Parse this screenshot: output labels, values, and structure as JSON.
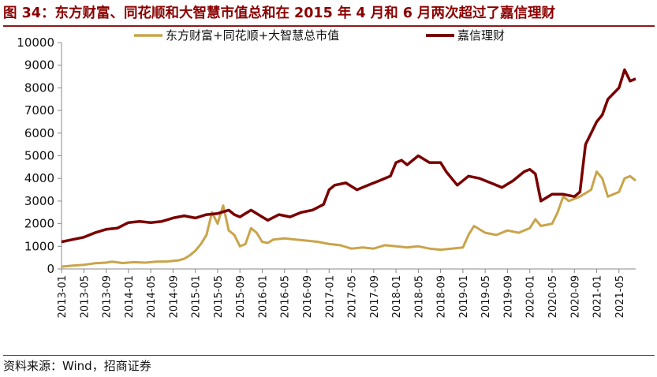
{
  "title": "图 34：东方财富、同花顺和大智慧市值总和在 2015 年 4 月和 6 月两次超过了嘉信理财",
  "source": "资料来源：Wind，招商证券",
  "chart_data": {
    "type": "line",
    "title": "图 34：东方财富、同花顺和大智慧市值总和在 2015 年 4 月和 6 月两次超过了嘉信理财",
    "xlabel": "",
    "ylabel": "",
    "ylim": [
      0,
      10000
    ],
    "yticks": [
      0,
      1000,
      2000,
      3000,
      4000,
      5000,
      6000,
      7000,
      8000,
      9000,
      10000
    ],
    "xlim": [
      "2013-01",
      "2021-08"
    ],
    "xticks": [
      "2013-01",
      "2013-05",
      "2013-09",
      "2014-01",
      "2014-05",
      "2014-09",
      "2015-01",
      "2015-05",
      "2015-09",
      "2016-01",
      "2016-05",
      "2016-09",
      "2017-01",
      "2017-05",
      "2017-09",
      "2018-01",
      "2018-05",
      "2018-09",
      "2019-01",
      "2019-05",
      "2019-09",
      "2020-01",
      "2020-05",
      "2020-09",
      "2021-01",
      "2021-05"
    ],
    "grid": false,
    "legend_position": "top",
    "series": [
      {
        "name": "东方财富+同花顺+大智慧总市值",
        "color": "#c9a44a",
        "points": [
          [
            "2013-01",
            100
          ],
          [
            "2013-03",
            150
          ],
          [
            "2013-05",
            180
          ],
          [
            "2013-07",
            250
          ],
          [
            "2013-09",
            280
          ],
          [
            "2013-10",
            320
          ],
          [
            "2013-12",
            260
          ],
          [
            "2014-02",
            300
          ],
          [
            "2014-04",
            280
          ],
          [
            "2014-06",
            320
          ],
          [
            "2014-08",
            330
          ],
          [
            "2014-10",
            380
          ],
          [
            "2014-11",
            450
          ],
          [
            "2014-12",
            600
          ],
          [
            "2015-01",
            800
          ],
          [
            "2015-02",
            1100
          ],
          [
            "2015-03",
            1500
          ],
          [
            "2015-04",
            2500
          ],
          [
            "2015-05",
            2000
          ],
          [
            "2015-06",
            2800
          ],
          [
            "2015-07",
            1700
          ],
          [
            "2015-08",
            1500
          ],
          [
            "2015-09",
            1000
          ],
          [
            "2015-10",
            1100
          ],
          [
            "2015-11",
            1800
          ],
          [
            "2015-12",
            1600
          ],
          [
            "2016-01",
            1200
          ],
          [
            "2016-02",
            1150
          ],
          [
            "2016-03",
            1300
          ],
          [
            "2016-05",
            1350
          ],
          [
            "2016-07",
            1300
          ],
          [
            "2016-09",
            1250
          ],
          [
            "2016-11",
            1200
          ],
          [
            "2017-01",
            1100
          ],
          [
            "2017-03",
            1050
          ],
          [
            "2017-05",
            900
          ],
          [
            "2017-07",
            950
          ],
          [
            "2017-09",
            900
          ],
          [
            "2017-11",
            1050
          ],
          [
            "2018-01",
            1000
          ],
          [
            "2018-03",
            950
          ],
          [
            "2018-05",
            1000
          ],
          [
            "2018-07",
            900
          ],
          [
            "2018-09",
            850
          ],
          [
            "2018-11",
            900
          ],
          [
            "2019-01",
            950
          ],
          [
            "2019-02",
            1500
          ],
          [
            "2019-03",
            1900
          ],
          [
            "2019-05",
            1600
          ],
          [
            "2019-07",
            1500
          ],
          [
            "2019-09",
            1700
          ],
          [
            "2019-11",
            1600
          ],
          [
            "2020-01",
            1800
          ],
          [
            "2020-02",
            2200
          ],
          [
            "2020-03",
            1900
          ],
          [
            "2020-05",
            2000
          ],
          [
            "2020-06",
            2500
          ],
          [
            "2020-07",
            3200
          ],
          [
            "2020-08",
            3000
          ],
          [
            "2020-10",
            3200
          ],
          [
            "2020-12",
            3500
          ],
          [
            "2021-01",
            4300
          ],
          [
            "2021-02",
            4000
          ],
          [
            "2021-03",
            3200
          ],
          [
            "2021-05",
            3400
          ],
          [
            "2021-06",
            4000
          ],
          [
            "2021-07",
            4100
          ],
          [
            "2021-08",
            3900
          ]
        ]
      },
      {
        "name": "嘉信理财",
        "color": "#7a0000",
        "points": [
          [
            "2013-01",
            1200
          ],
          [
            "2013-03",
            1300
          ],
          [
            "2013-05",
            1400
          ],
          [
            "2013-07",
            1600
          ],
          [
            "2013-09",
            1750
          ],
          [
            "2013-11",
            1800
          ],
          [
            "2014-01",
            2050
          ],
          [
            "2014-03",
            2100
          ],
          [
            "2014-05",
            2050
          ],
          [
            "2014-07",
            2100
          ],
          [
            "2014-09",
            2250
          ],
          [
            "2014-11",
            2350
          ],
          [
            "2015-01",
            2250
          ],
          [
            "2015-03",
            2400
          ],
          [
            "2015-05",
            2450
          ],
          [
            "2015-07",
            2600
          ],
          [
            "2015-08",
            2400
          ],
          [
            "2015-09",
            2300
          ],
          [
            "2015-11",
            2600
          ],
          [
            "2016-01",
            2300
          ],
          [
            "2016-02",
            2150
          ],
          [
            "2016-04",
            2400
          ],
          [
            "2016-06",
            2300
          ],
          [
            "2016-08",
            2500
          ],
          [
            "2016-10",
            2600
          ],
          [
            "2016-12",
            2850
          ],
          [
            "2017-01",
            3500
          ],
          [
            "2017-02",
            3700
          ],
          [
            "2017-04",
            3800
          ],
          [
            "2017-06",
            3500
          ],
          [
            "2017-08",
            3700
          ],
          [
            "2017-10",
            3900
          ],
          [
            "2017-12",
            4100
          ],
          [
            "2018-01",
            4700
          ],
          [
            "2018-02",
            4800
          ],
          [
            "2018-03",
            4600
          ],
          [
            "2018-05",
            5000
          ],
          [
            "2018-07",
            4700
          ],
          [
            "2018-09",
            4700
          ],
          [
            "2018-10",
            4300
          ],
          [
            "2018-12",
            3700
          ],
          [
            "2019-02",
            4100
          ],
          [
            "2019-04",
            4000
          ],
          [
            "2019-06",
            3800
          ],
          [
            "2019-08",
            3600
          ],
          [
            "2019-10",
            3900
          ],
          [
            "2019-12",
            4300
          ],
          [
            "2020-01",
            4400
          ],
          [
            "2020-02",
            4200
          ],
          [
            "2020-03",
            3000
          ],
          [
            "2020-05",
            3300
          ],
          [
            "2020-07",
            3300
          ],
          [
            "2020-09",
            3200
          ],
          [
            "2020-10",
            3400
          ],
          [
            "2020-11",
            5500
          ],
          [
            "2020-12",
            6000
          ],
          [
            "2021-01",
            6500
          ],
          [
            "2021-02",
            6800
          ],
          [
            "2021-03",
            7500
          ],
          [
            "2021-05",
            8000
          ],
          [
            "2021-06",
            8800
          ],
          [
            "2021-07",
            8300
          ],
          [
            "2021-08",
            8400
          ]
        ]
      }
    ]
  }
}
